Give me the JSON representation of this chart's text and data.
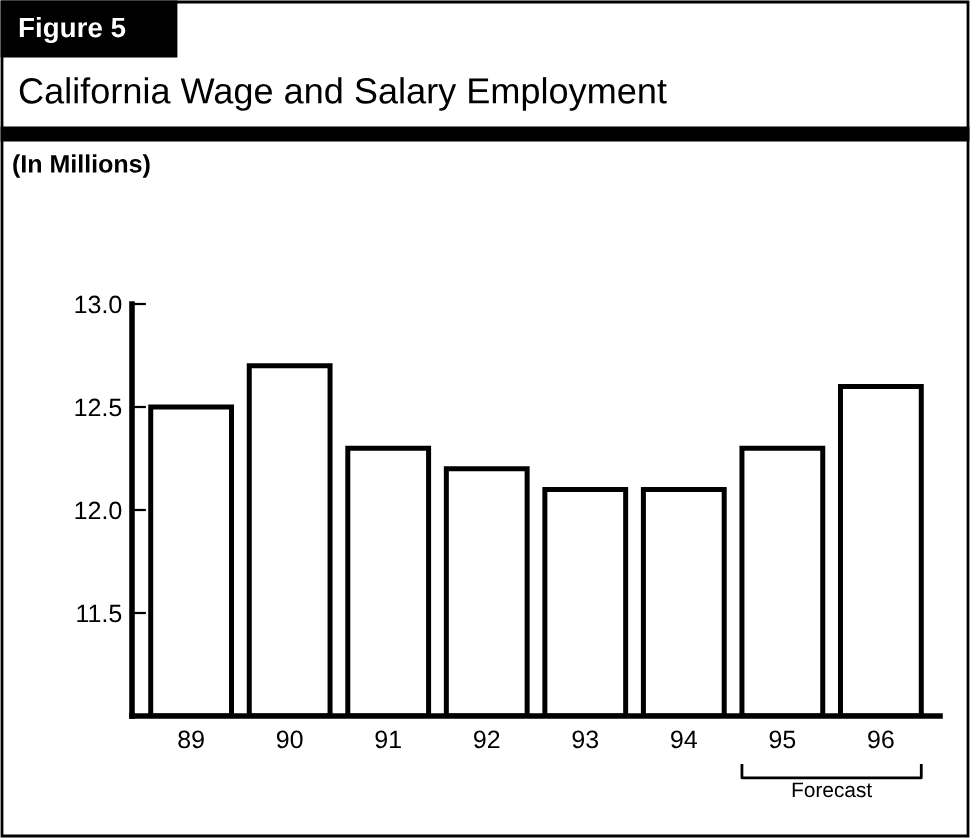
{
  "chart_data": {
    "type": "bar",
    "title": "California Wage and Salary Employment",
    "subtitle": "(In Millions)",
    "annotations": [
      "Figure 5",
      "Forecast"
    ],
    "categories": [
      "89",
      "90",
      "91",
      "92",
      "93",
      "94",
      "95",
      "96"
    ],
    "values": [
      12.5,
      12.7,
      12.3,
      12.2,
      12.1,
      12.1,
      12.3,
      12.6
    ],
    "color": "#ffffff",
    "ylim": [
      11.0,
      13.0
    ],
    "yticks": [
      11.5,
      {
        "value": 12,
        "label": "12.0"
      },
      12.5,
      {
        "value": 13,
        "label": "13.0"
      }
    ],
    "grid": false,
    "legend": false
  }
}
